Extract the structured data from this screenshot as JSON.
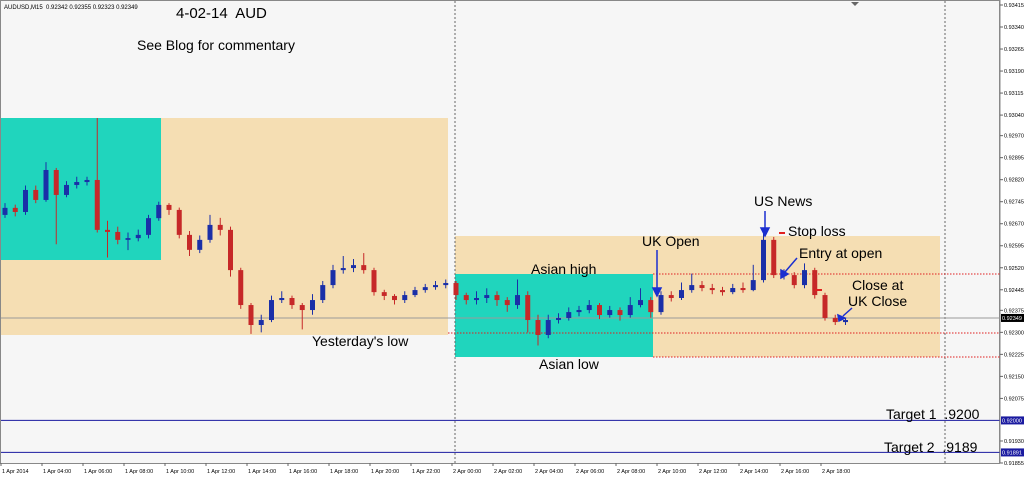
{
  "chart_data": {
    "type": "candlestick",
    "header": "AUDUSD,M15  0.92342 0.92355 0.92323 0.92349",
    "title": "4-02-14  AUD",
    "subtitle": "See Blog for commentary",
    "annotations": [
      "Yesterday's low",
      "Asian high",
      "Asian low",
      "UK Open",
      "US News",
      "Stop loss",
      "Entry at open",
      "Close at",
      "UK Close",
      "Target 1  .9200",
      "Target 2  .9189"
    ],
    "categories": [
      "1 Apr 2014",
      null,
      null,
      null,
      "1 Apr 04:00",
      null,
      null,
      null,
      "1 Apr 06:00",
      null,
      null,
      null,
      "1 Apr 08:00",
      null,
      null,
      null,
      "1 Apr 10:00",
      null,
      null,
      null,
      "1 Apr 12:00",
      null,
      null,
      null,
      "1 Apr 14:00",
      null,
      null,
      null,
      "1 Apr 16:00",
      null,
      null,
      null,
      "1 Apr 18:00",
      null,
      null,
      null,
      "1 Apr 20:00",
      null,
      null,
      null,
      "1 Apr 22:00",
      null,
      null,
      null,
      "2 Apr 00:00",
      null,
      null,
      null,
      "2 Apr 02:00",
      null,
      null,
      null,
      "2 Apr 04:00",
      null,
      null,
      null,
      "2 Apr 06:00",
      null,
      null,
      null,
      "2 Apr 08:00",
      null,
      null,
      null,
      "2 Apr 10:00",
      null,
      null,
      null,
      "2 Apr 12:00",
      null,
      null,
      null,
      "2 Apr 14:00",
      null,
      null,
      null,
      "2 Apr 16:00",
      null,
      null,
      null,
      "2 Apr 18:00",
      null,
      null
    ],
    "open": [
      0.927,
      0.92724,
      0.9271,
      0.92785,
      0.92751,
      0.92853,
      0.92768,
      0.92802,
      0.92812,
      0.92819,
      0.92649,
      0.92642,
      0.92615,
      0.92621,
      0.92632,
      0.92689,
      0.92734,
      0.92717,
      0.92632,
      0.92581,
      0.92615,
      0.92666,
      0.92649,
      0.92512,
      0.92393,
      0.92325,
      0.92342,
      0.9241,
      0.92417,
      0.92393,
      0.92376,
      0.9241,
      0.92461,
      0.92512,
      0.92519,
      0.92529,
      0.92512,
      0.92437,
      0.92424,
      0.9241,
      0.92427,
      0.92444,
      0.92454,
      0.92461,
      0.92468,
      0.92427,
      0.9241,
      0.92417,
      0.92427,
      0.9241,
      0.92393,
      0.92427,
      0.92342,
      0.92291,
      0.92342,
      0.92349,
      0.92369,
      0.92376,
      0.92393,
      0.92359,
      0.92376,
      0.92359,
      0.92393,
      0.9241,
      0.92369,
      0.92427,
      0.92417,
      0.92444,
      0.92461,
      0.92451,
      0.92444,
      0.92437,
      0.92451,
      0.92444,
      0.92478,
      0.92615,
      0.92495,
      0.92495,
      0.92461,
      0.92512,
      0.92427,
      0.92349,
      0.92335
    ],
    "high": [
      0.9274,
      0.92735,
      0.928,
      0.928,
      0.9288,
      0.9286,
      0.92815,
      0.9283,
      0.9283,
      0.9303,
      0.9268,
      0.9266,
      0.9264,
      0.9265,
      0.927,
      0.92745,
      0.9274,
      0.92725,
      0.92645,
      0.9263,
      0.927,
      0.9269,
      0.9266,
      0.9252,
      0.924,
      0.9236,
      0.92425,
      0.9244,
      0.92425,
      0.924,
      0.9243,
      0.92475,
      0.9253,
      0.9256,
      0.9255,
      0.9257,
      0.9252,
      0.92445,
      0.9243,
      0.9244,
      0.92455,
      0.92465,
      0.92475,
      0.9248,
      0.92475,
      0.92435,
      0.9244,
      0.9245,
      0.9244,
      0.9242,
      0.9248,
      0.9244,
      0.9236,
      0.9236,
      0.92365,
      0.92385,
      0.9239,
      0.9241,
      0.924,
      0.9239,
      0.92385,
      0.9242,
      0.9245,
      0.9242,
      0.9244,
      0.9244,
      0.9247,
      0.925,
      0.92475,
      0.92465,
      0.92455,
      0.92465,
      0.9247,
      0.9253,
      0.9264,
      0.92625,
      0.92515,
      0.92505,
      0.92535,
      0.9252,
      0.92435,
      0.9236,
      0.9235
    ],
    "low": [
      0.9269,
      0.92695,
      0.927,
      0.9274,
      0.92745,
      0.926,
      0.9276,
      0.9279,
      0.928,
      0.9264,
      0.92555,
      0.926,
      0.9258,
      0.9261,
      0.9262,
      0.9268,
      0.927,
      0.9262,
      0.9256,
      0.9257,
      0.92605,
      0.9263,
      0.9249,
      0.9238,
      0.92295,
      0.923,
      0.92335,
      0.924,
      0.9238,
      0.9231,
      0.9236,
      0.924,
      0.9245,
      0.925,
      0.92505,
      0.925,
      0.92425,
      0.9241,
      0.92395,
      0.924,
      0.9242,
      0.92435,
      0.92445,
      0.9245,
      0.9241,
      0.92395,
      0.92395,
      0.924,
      0.9239,
      0.9237,
      0.9238,
      0.923,
      0.92255,
      0.9228,
      0.9233,
      0.9234,
      0.92355,
      0.92365,
      0.92345,
      0.9235,
      0.9234,
      0.9235,
      0.92385,
      0.9235,
      0.9236,
      0.92405,
      0.9241,
      0.92435,
      0.9244,
      0.9243,
      0.92425,
      0.9243,
      0.92435,
      0.9244,
      0.9247,
      0.92485,
      0.9248,
      0.9245,
      0.9245,
      0.92415,
      0.9234,
      0.92325,
      0.92325
    ],
    "close": [
      0.92724,
      0.9271,
      0.92785,
      0.92751,
      0.92853,
      0.92768,
      0.92802,
      0.92812,
      0.92819,
      0.92649,
      0.92642,
      0.92615,
      0.92621,
      0.92632,
      0.92689,
      0.92734,
      0.92717,
      0.92632,
      0.92581,
      0.92615,
      0.92666,
      0.92649,
      0.92512,
      0.92393,
      0.92325,
      0.92342,
      0.9241,
      0.92417,
      0.92393,
      0.92376,
      0.9241,
      0.92461,
      0.92512,
      0.92519,
      0.92529,
      0.92512,
      0.92437,
      0.92424,
      0.9241,
      0.92427,
      0.92444,
      0.92454,
      0.92461,
      0.92468,
      0.92427,
      0.9241,
      0.92417,
      0.92427,
      0.9241,
      0.92393,
      0.92427,
      0.92342,
      0.92291,
      0.92342,
      0.92349,
      0.92369,
      0.92376,
      0.92393,
      0.92359,
      0.92376,
      0.92359,
      0.92393,
      0.9241,
      0.92369,
      0.92427,
      0.92417,
      0.92444,
      0.92461,
      0.92451,
      0.92444,
      0.92437,
      0.92451,
      0.92444,
      0.92478,
      0.92615,
      0.92495,
      0.92495,
      0.92461,
      0.92512,
      0.92427,
      0.92349,
      0.92335,
      0.92342
    ],
    "up_color": "#1a2fa8",
    "down_color": "#c62828",
    "ylim": [
      0.91855,
      0.93432
    ],
    "yticks": [
      0.93415,
      {
        "value": 0.9334,
        "label": "0.93340"
      },
      0.93265,
      {
        "value": 0.9319,
        "label": "0.93190"
      },
      0.93115,
      {
        "value": 0.9304,
        "label": "0.93040"
      },
      {
        "value": 0.9297,
        "label": "0.92970"
      },
      0.92895,
      {
        "value": 0.9282,
        "label": "0.92820"
      },
      0.92745,
      {
        "value": 0.9267,
        "label": "0.92670"
      },
      0.92595,
      {
        "value": 0.9252,
        "label": "0.92520"
      },
      0.92445,
      0.92375,
      {
        "value": 0.923,
        "label": "0.92300"
      },
      0.92225,
      {
        "value": 0.9215,
        "label": "0.92150"
      },
      0.92075,
      {
        "value": 0.9193,
        "label": "0.91930"
      },
      0.91855
    ],
    "price_lines": [
      {
        "value": 0.92349,
        "label": "0.92349",
        "color": "#9a9a9a",
        "box": "#000000"
      },
      {
        "value": 0.92,
        "label": "0.92000",
        "color": "#1a1aa0",
        "box": "#1a1aa0"
      },
      {
        "value": 0.91891,
        "label": "0.91891",
        "color": "#1a1aa0",
        "box": "#1a1aa0"
      }
    ]
  }
}
